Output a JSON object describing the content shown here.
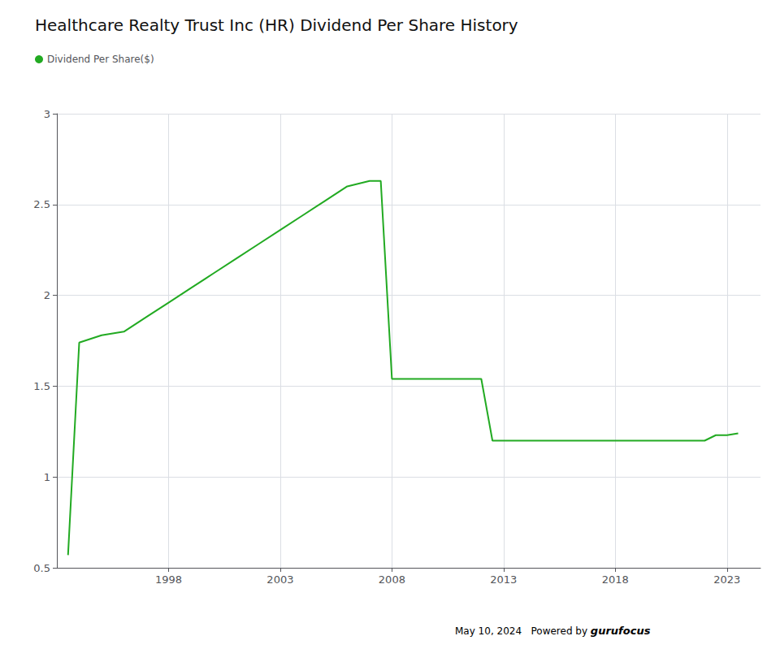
{
  "chart_data": {
    "type": "line",
    "title": "Healthcare Realty Trust Inc (HR) Dividend Per Share History",
    "x": [
      1993.5,
      1994,
      1995,
      1996,
      1997,
      1998,
      1999,
      2000,
      2001,
      2002,
      2003,
      2004,
      2005,
      2006,
      2007,
      2007.5,
      2008,
      2009,
      2009.5,
      2010,
      2011,
      2012,
      2012.5,
      2013,
      2014,
      2015,
      2016,
      2017,
      2018,
      2019,
      2020,
      2021,
      2022,
      2022.5,
      2023,
      2023.5
    ],
    "series": [
      {
        "name": "Dividend Per Share($)",
        "color": "#22aa22",
        "values": [
          0.57,
          1.74,
          1.78,
          1.8,
          1.88,
          1.96,
          2.04,
          2.12,
          2.2,
          2.28,
          2.36,
          2.44,
          2.52,
          2.6,
          2.63,
          2.63,
          1.54,
          1.54,
          1.54,
          1.54,
          1.54,
          1.54,
          1.2,
          1.2,
          1.2,
          1.2,
          1.2,
          1.2,
          1.2,
          1.2,
          1.2,
          1.2,
          1.2,
          1.23,
          1.23,
          1.24
        ]
      }
    ],
    "xlim": [
      1993.0,
      2024.5
    ],
    "xticks": [
      1998,
      2003,
      2008,
      2013,
      2018,
      2023
    ],
    "ylim": [
      0.5,
      3.0
    ],
    "yticks": [
      0.5,
      1,
      1.5,
      2,
      2.5,
      3
    ],
    "grid": true,
    "legend": "upper left",
    "annotations": [
      {
        "text": "May 10, 2024"
      },
      {
        "text": "Powered by"
      },
      {
        "text": "guru",
        "color": "#f5a623"
      },
      {
        "text": "focus",
        "color": "#1a5db5"
      }
    ]
  }
}
